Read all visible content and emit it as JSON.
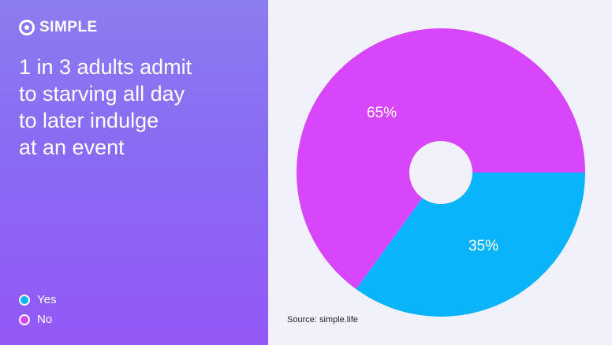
{
  "brand": {
    "name": "SIMPLE",
    "icon": "simple-logo-icon"
  },
  "headline": "1 in 3 adults admit\nto starving all day\nto later indulge\nat an event",
  "source": "Source: simple.life",
  "colors": {
    "yes": "#0ab4fb",
    "no": "#d746fb",
    "panel": "#8b6cf3",
    "background": "#f0f1fb"
  },
  "chart_data": {
    "type": "pie",
    "categories": [
      "Yes",
      "No"
    ],
    "values": [
      35,
      65
    ],
    "labels": [
      "35%",
      "65%"
    ],
    "legend": [
      "Yes",
      "No"
    ],
    "legend_position": "bottom-left"
  }
}
